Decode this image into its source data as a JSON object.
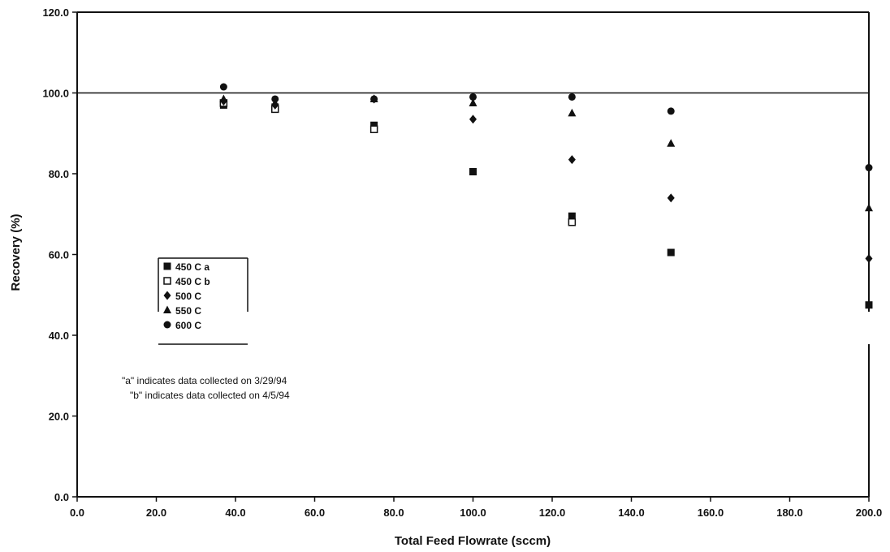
{
  "chart_data": {
    "type": "scatter",
    "title": "",
    "xlabel": "Total Feed Flowrate (sccm)",
    "ylabel": "Recovery (%)",
    "xlim": [
      0,
      200
    ],
    "ylim": [
      0,
      120
    ],
    "x_ticks": [
      "0.0",
      "20.0",
      "40.0",
      "60.0",
      "80.0",
      "100.0",
      "120.0",
      "140.0",
      "160.0",
      "180.0",
      "200.0"
    ],
    "y_ticks": [
      "0.0",
      "20.0",
      "40.0",
      "60.0",
      "80.0",
      "100.0",
      "120.0"
    ],
    "reference_line_y": 100,
    "grid": false,
    "legend_position": "left",
    "series": [
      {
        "name": "450 C a",
        "marker": "square-filled",
        "points": [
          [
            37,
            97
          ],
          [
            50,
            96.5
          ],
          [
            75,
            92
          ],
          [
            100,
            80.5
          ],
          [
            125,
            69.5
          ],
          [
            150,
            60.5
          ],
          [
            200,
            47.5
          ]
        ]
      },
      {
        "name": "450 C b",
        "marker": "square-open",
        "points": [
          [
            37,
            97.5
          ],
          [
            50,
            96
          ],
          [
            75,
            91
          ],
          [
            125,
            68
          ]
        ]
      },
      {
        "name": "500 C",
        "marker": "diamond-filled",
        "points": [
          [
            37,
            98
          ],
          [
            50,
            97
          ],
          [
            75,
            98.5
          ],
          [
            100,
            93.5
          ],
          [
            125,
            83.5
          ],
          [
            150,
            74
          ],
          [
            200,
            59
          ]
        ]
      },
      {
        "name": "550 C",
        "marker": "triangle-filled",
        "points": [
          [
            37,
            98.5
          ],
          [
            50,
            97.5
          ],
          [
            75,
            98.5
          ],
          [
            100,
            97.5
          ],
          [
            125,
            95
          ],
          [
            150,
            87.5
          ],
          [
            200,
            71.5
          ]
        ]
      },
      {
        "name": "600 C",
        "marker": "circle-filled",
        "points": [
          [
            37,
            101.5
          ],
          [
            50,
            98.5
          ],
          [
            75,
            98.5
          ],
          [
            100,
            99
          ],
          [
            125,
            99
          ],
          [
            150,
            95.5
          ],
          [
            200,
            81.5
          ]
        ]
      }
    ],
    "annotations": [
      "\"a\" indicates data collected on 3/29/94",
      "\"b\" indicates data collected on 4/5/94"
    ]
  }
}
